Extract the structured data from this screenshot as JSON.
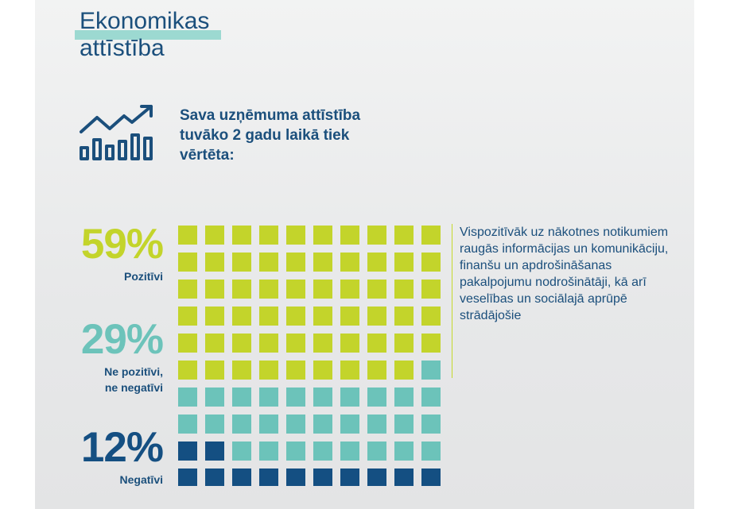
{
  "title": {
    "line1": "Ekonomikas",
    "line2": "attīstība"
  },
  "subtitle": "Sava uzņēmuma attīstība tuvāko 2 gadu laikā tiek vērtēta:",
  "icon": "growth-chart-icon",
  "colors": {
    "positive": "#c3d42b",
    "neutral": "#6cc3ba",
    "negative": "#144f82",
    "text": "#1b4f7c",
    "title_highlight": "#7fd0c6"
  },
  "chart_data": {
    "type": "waffle",
    "grid": {
      "rows": 10,
      "cols": 10
    },
    "series": [
      {
        "name": "Pozitīvi",
        "value": 59,
        "label": "59%"
      },
      {
        "name": "Ne pozitīvi, ne negatīvi",
        "value": 29,
        "label": "29%"
      },
      {
        "name": "Negatīvi",
        "value": 12,
        "label": "12%"
      }
    ]
  },
  "labels": {
    "positive_pct": "59%",
    "positive_name": "Pozitīvi",
    "neutral_pct": "29%",
    "neutral_line1": "Ne pozitīvi,",
    "neutral_line2": "ne negatīvi",
    "negative_pct": "12%",
    "negative_name": "Negatīvi"
  },
  "note": "Vispozitīvāk uz nākotnes notikumiem raugās informācijas un komunikāciju, finanšu un apdrošināšanas pakalpojumu nodrošinātāji, kā arī veselības un sociālajā aprūpē strādājošie"
}
